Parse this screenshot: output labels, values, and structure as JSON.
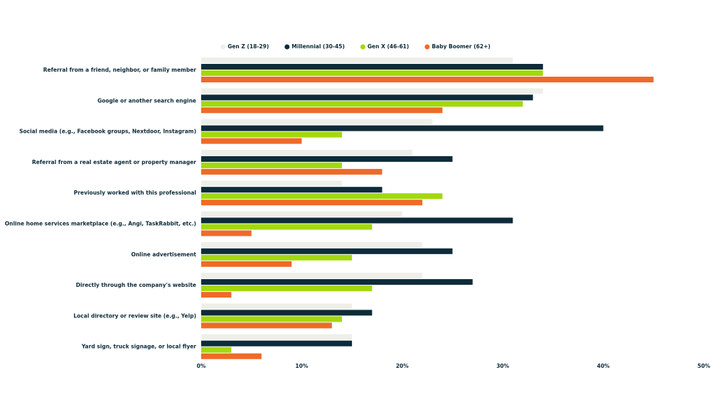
{
  "chart_data": {
    "type": "bar",
    "orientation": "horizontal",
    "categories": [
      "Referral from a friend, neighbor, or family member",
      "Google or another search engine",
      "Social media (e.g., Facebook groups, Nextdoor, Instagram)",
      "Referral from a real estate agent or property manager",
      "Previously worked with this professional",
      "Online home services marketplace (e.g., Angi, TaskRabbit, etc.)",
      "Online advertisement",
      "Directly through the company's website",
      "Local directory or review site (e.g., Yelp)",
      "Yard sign, truck signage, or local flyer"
    ],
    "series": [
      {
        "name": "Gen Z (18-29)",
        "color": "#efefea",
        "values": [
          31,
          34,
          23,
          21,
          14,
          20,
          22,
          22,
          15,
          15
        ]
      },
      {
        "name": "Millennial (30-45)",
        "color": "#0d2b3a",
        "values": [
          34,
          33,
          40,
          25,
          18,
          31,
          25,
          27,
          17,
          15
        ]
      },
      {
        "name": "Gen X (46-61)",
        "color": "#a3d80f",
        "values": [
          34,
          32,
          14,
          14,
          24,
          17,
          15,
          17,
          14,
          3
        ]
      },
      {
        "name": "Baby Boomer (62+)",
        "color": "#ee6a2a",
        "values": [
          45,
          24,
          10,
          18,
          22,
          5,
          9,
          3,
          13,
          6
        ]
      }
    ],
    "xlim": [
      0,
      50
    ],
    "xticks": [
      {
        "value": 0,
        "label": "0%"
      },
      {
        "value": 10,
        "label": "10%"
      },
      {
        "value": 20,
        "label": "20%"
      },
      {
        "value": 30,
        "label": "30%"
      },
      {
        "value": 40,
        "label": "40%"
      },
      {
        "value": 50,
        "label": "50%"
      }
    ],
    "legend": "top"
  }
}
